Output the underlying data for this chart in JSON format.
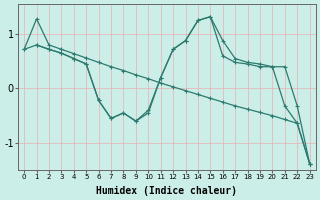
{
  "xlabel": "Humidex (Indice chaleur)",
  "bg_color": "#cceee8",
  "line_color": "#2d7a6e",
  "grid_color": "#e8b0b0",
  "xlim": [
    -0.5,
    23.5
  ],
  "ylim": [
    -1.5,
    1.55
  ],
  "yticks": [
    -1,
    0,
    1
  ],
  "xticks": [
    0,
    1,
    2,
    3,
    4,
    5,
    6,
    7,
    8,
    9,
    10,
    11,
    12,
    13,
    14,
    15,
    16,
    17,
    18,
    19,
    20,
    21,
    22,
    23
  ],
  "line1_x": [
    0,
    1,
    2,
    3,
    4,
    5,
    6,
    7,
    8,
    9,
    10,
    11,
    12,
    13,
    14,
    15,
    16,
    17,
    18,
    19,
    20,
    21,
    22,
    23
  ],
  "line1_y": [
    0.72,
    1.28,
    0.8,
    0.72,
    0.64,
    0.56,
    0.48,
    0.4,
    0.33,
    0.25,
    0.18,
    0.1,
    0.03,
    -0.04,
    -0.11,
    -0.18,
    -0.25,
    -0.32,
    -0.38,
    -0.44,
    -0.5,
    -0.57,
    -0.64,
    -1.38
  ],
  "line2_x": [
    0,
    1,
    2,
    3,
    4,
    5,
    6,
    7,
    8,
    9,
    10,
    11,
    12,
    13,
    14,
    15,
    16,
    17,
    18,
    19,
    20,
    21,
    22,
    23
  ],
  "line2_y": [
    0.72,
    0.8,
    0.72,
    0.65,
    0.55,
    0.45,
    -0.22,
    -0.55,
    -0.45,
    -0.6,
    -0.45,
    0.2,
    0.72,
    0.88,
    1.25,
    1.32,
    0.88,
    0.55,
    0.48,
    0.45,
    0.4,
    -0.32,
    -0.64,
    -1.38
  ],
  "line3_x": [
    1,
    2,
    3,
    4,
    5,
    6,
    7,
    8,
    9,
    10,
    11,
    12,
    13,
    14,
    15,
    16,
    17,
    18,
    19,
    20,
    21,
    22,
    23
  ],
  "line3_y": [
    0.8,
    0.72,
    0.65,
    0.55,
    0.45,
    -0.22,
    -0.55,
    -0.45,
    -0.6,
    -0.4,
    0.2,
    0.72,
    0.88,
    1.25,
    1.32,
    0.6,
    0.48,
    0.45,
    0.4,
    0.4,
    0.4,
    -0.32,
    -1.38
  ],
  "marker": "+",
  "markersize": 3,
  "linewidth": 0.9
}
